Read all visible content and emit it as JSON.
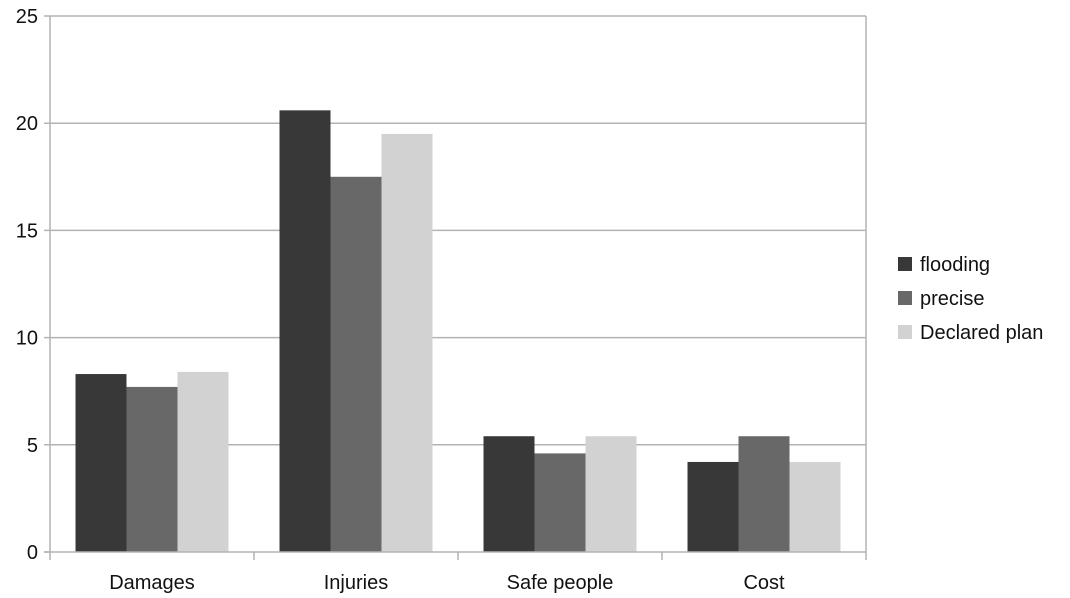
{
  "chart_data": {
    "type": "bar",
    "categories": [
      "Damages",
      "Injuries",
      "Safe people",
      "Cost"
    ],
    "series": [
      {
        "name": "flooding",
        "values": [
          8.3,
          20.6,
          5.4,
          4.2
        ],
        "color": "#383838"
      },
      {
        "name": "precise",
        "values": [
          7.7,
          17.5,
          4.6,
          5.4
        ],
        "color": "#686868"
      },
      {
        "name": "Declared plan",
        "values": [
          8.4,
          19.5,
          5.4,
          4.2
        ],
        "color": "#d2d2d2"
      }
    ],
    "yticks": [
      0,
      5,
      10,
      15,
      20,
      25
    ],
    "ylim": [
      0,
      25
    ],
    "grid": true,
    "legend": "right",
    "gridColor": "#b3b3b3",
    "axisColor": "#b3b3b3"
  }
}
